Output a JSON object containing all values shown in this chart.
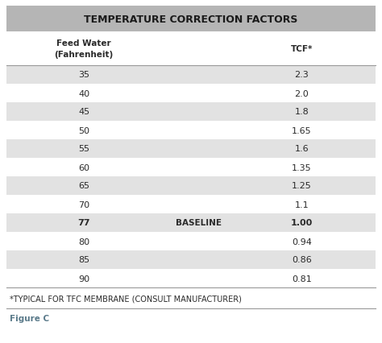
{
  "title": "TEMPERATURE CORRECTION FACTORS",
  "col1_header": "Feed Water\n(Fahrenheit)",
  "col2_header": "TCF*",
  "rows": [
    {
      "temp": "35",
      "baseline": "",
      "tcf": "2.3",
      "shaded": true
    },
    {
      "temp": "40",
      "baseline": "",
      "tcf": "2.0",
      "shaded": false
    },
    {
      "temp": "45",
      "baseline": "",
      "tcf": "1.8",
      "shaded": true
    },
    {
      "temp": "50",
      "baseline": "",
      "tcf": "1.65",
      "shaded": false
    },
    {
      "temp": "55",
      "baseline": "",
      "tcf": "1.6",
      "shaded": true
    },
    {
      "temp": "60",
      "baseline": "",
      "tcf": "1.35",
      "shaded": false
    },
    {
      "temp": "65",
      "baseline": "",
      "tcf": "1.25",
      "shaded": true
    },
    {
      "temp": "70",
      "baseline": "",
      "tcf": "1.1",
      "shaded": false
    },
    {
      "temp": "77",
      "baseline": "BASELINE",
      "tcf": "1.00",
      "shaded": true
    },
    {
      "temp": "80",
      "baseline": "",
      "tcf": "0.94",
      "shaded": false
    },
    {
      "temp": "85",
      "baseline": "",
      "tcf": "0.86",
      "shaded": true
    },
    {
      "temp": "90",
      "baseline": "",
      "tcf": "0.81",
      "shaded": false
    }
  ],
  "footnote": "*TYPICAL FOR TFC MEMBRANE (CONSULT MANUFACTURER)",
  "figure_label": "Figure C",
  "title_bg": "#b5b5b5",
  "stripe_bg": "#e2e2e2",
  "white_bg": "#ffffff",
  "title_text_color": "#1a1a1a",
  "text_color": "#2a2a2a",
  "figure_color": "#5a7a8a",
  "border_color": "#999999",
  "fig_width": 4.74,
  "fig_height": 4.27,
  "dpi": 100
}
